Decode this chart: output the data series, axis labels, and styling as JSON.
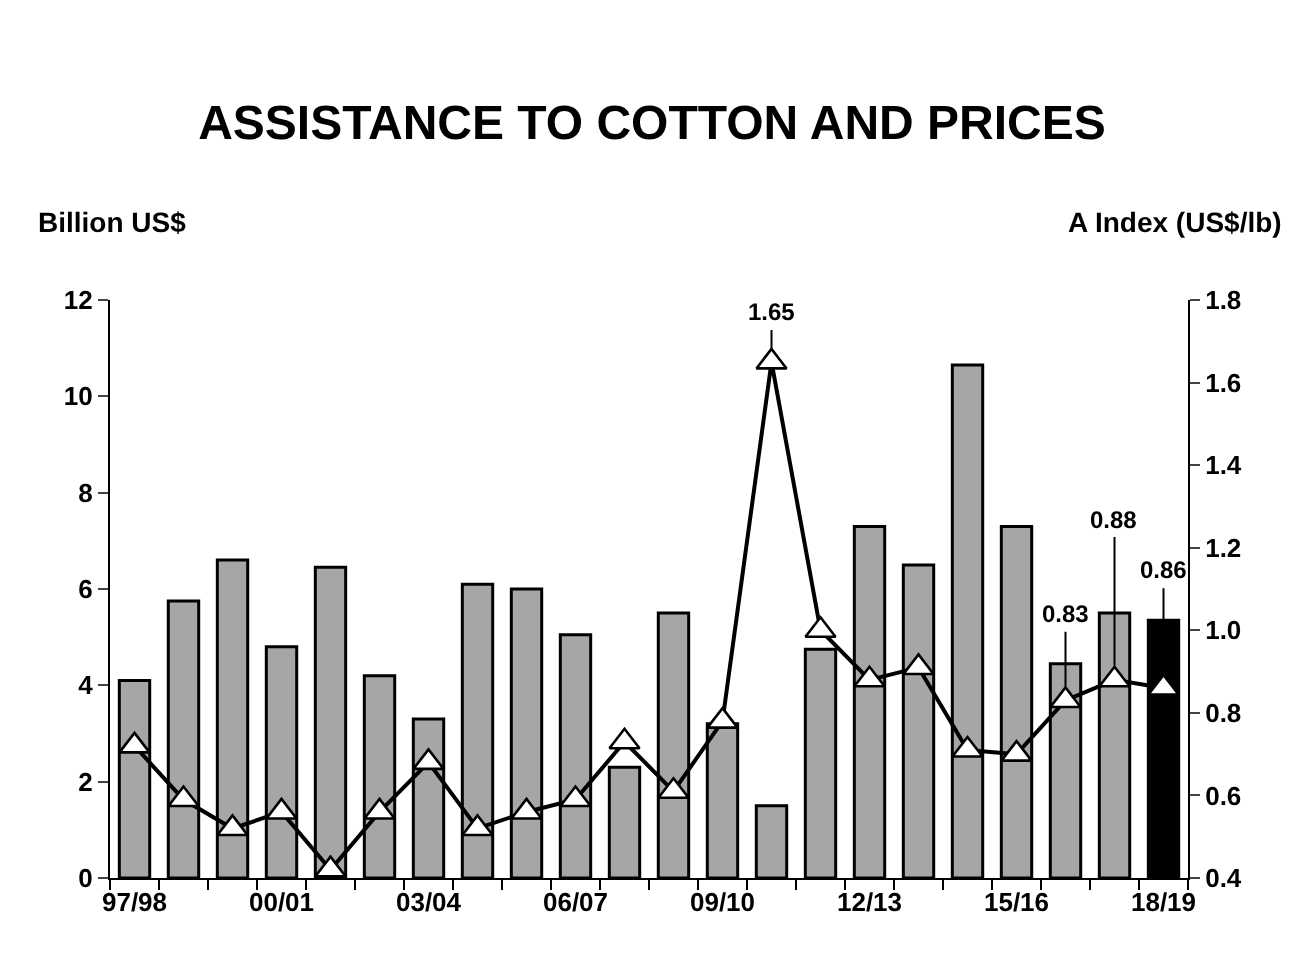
{
  "chart_data": {
    "type": "bar",
    "title": "ASSISTANCE TO COTTON AND PRICES",
    "ylabel": "Billion US$",
    "y2label": "A Index (US$/lb)",
    "categories": [
      "97/98",
      null,
      null,
      "00/01",
      null,
      null,
      "03/04",
      null,
      null,
      "06/07",
      null,
      null,
      "09/10",
      null,
      null,
      "12/13",
      null,
      null,
      "15/16",
      null,
      null,
      "18/19"
    ],
    "series": [
      {
        "colors": [
          "#a6a6a6",
          "#a6a6a6",
          "#a6a6a6",
          "#a6a6a6",
          "#a6a6a6",
          "#a6a6a6",
          "#a6a6a6",
          "#a6a6a6",
          "#a6a6a6",
          "#a6a6a6",
          "#a6a6a6",
          "#a6a6a6",
          "#a6a6a6",
          "#a6a6a6",
          "#a6a6a6",
          "#a6a6a6",
          "#a6a6a6",
          "#a6a6a6",
          "#a6a6a6",
          "#a6a6a6",
          "#a6a6a6",
          "#000000"
        ],
        "values": [
          4.1,
          5.75,
          6.6,
          4.8,
          6.45,
          4.2,
          3.3,
          6.1,
          6.0,
          5.05,
          2.3,
          5.5,
          3.2,
          1.5,
          4.75,
          7.3,
          6.5,
          10.65,
          7.3,
          4.45,
          5.5,
          5.35
        ]
      },
      {
        "type": "line",
        "axis": "y2",
        "color": "#000000",
        "marker": "triangle",
        "values": [
          0.72,
          0.59,
          0.52,
          0.56,
          0.42,
          0.56,
          0.68,
          0.52,
          0.56,
          0.59,
          0.73,
          0.61,
          0.78,
          1.65,
          1.0,
          0.88,
          0.91,
          0.71,
          0.7,
          0.83,
          0.88,
          0.86
        ],
        "value_labels": [
          null,
          null,
          null,
          null,
          null,
          null,
          null,
          null,
          null,
          null,
          null,
          null,
          null,
          "1.65",
          null,
          null,
          null,
          null,
          null,
          "0.83",
          "0.88",
          "0.86"
        ]
      }
    ],
    "ylim": [
      0,
      12
    ],
    "yticks": [
      0,
      2,
      4,
      6,
      8,
      10,
      12
    ],
    "y2lim": [
      0.4,
      1.8
    ],
    "y2ticks": [
      0.4,
      0.6,
      0.8,
      {
        "value": 1.0,
        "label": "1.0"
      },
      1.2,
      1.4,
      1.6,
      1.8
    ]
  }
}
